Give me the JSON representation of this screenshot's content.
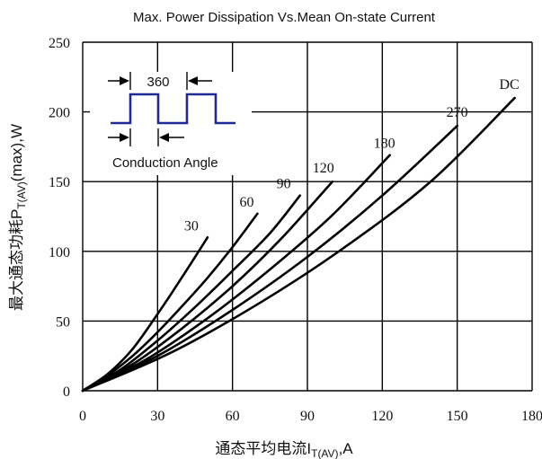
{
  "chart_data": {
    "type": "line",
    "title": "Max. Power Dissipation Vs.Mean On-state Current",
    "xlabel": {
      "prefix": "通态平均电流I",
      "sub": "T(AV)",
      "suffix": ",A"
    },
    "ylabel": {
      "prefix": "最大通态功耗P",
      "sub": "T(AV)",
      "suffix": "(max),W"
    },
    "xlim": [
      0,
      180
    ],
    "ylim": [
      0,
      250
    ],
    "xticks": [
      0,
      30,
      60,
      90,
      120,
      150,
      180
    ],
    "yticks": [
      0,
      50,
      100,
      150,
      200,
      250
    ],
    "grid": true,
    "series": [
      {
        "name": "30",
        "x": [
          0,
          10,
          20,
          30,
          40,
          50
        ],
        "y": [
          0,
          12,
          30,
          55,
          82,
          110
        ]
      },
      {
        "name": "60",
        "x": [
          0,
          10,
          20,
          30,
          40,
          50,
          60,
          70
        ],
        "y": [
          0,
          11,
          25,
          42,
          61,
          81,
          103,
          127
        ]
      },
      {
        "name": "90",
        "x": [
          0,
          15,
          30,
          45,
          60,
          75,
          87
        ],
        "y": [
          0,
          15,
          36,
          60,
          86,
          113,
          140
        ]
      },
      {
        "name": "120",
        "x": [
          0,
          20,
          40,
          60,
          80,
          100
        ],
        "y": [
          0,
          19,
          45,
          75,
          110,
          150
        ]
      },
      {
        "name": "180",
        "x": [
          0,
          25,
          50,
          75,
          100,
          123
        ],
        "y": [
          0,
          22,
          52,
          87,
          126,
          169
        ]
      },
      {
        "name": "270",
        "x": [
          0,
          30,
          60,
          90,
          120,
          150
        ],
        "y": [
          0,
          25,
          58,
          96,
          140,
          190
        ]
      },
      {
        "name": "DC",
        "x": [
          0,
          35,
          70,
          105,
          140,
          173
        ],
        "y": [
          0,
          27,
          62,
          103,
          151,
          210
        ]
      }
    ],
    "inset": {
      "period_label": "360",
      "caption": "Conduction Angle"
    }
  }
}
